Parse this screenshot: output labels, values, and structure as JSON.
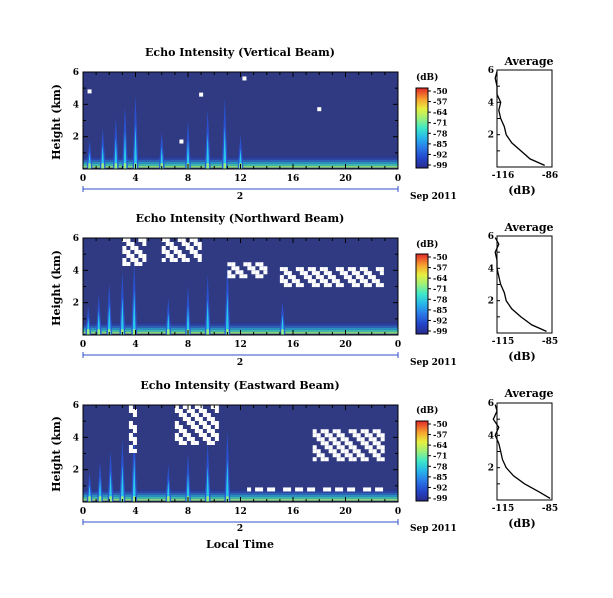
{
  "figure": {
    "xlabel": "Local Time",
    "unit_label": "(dB)",
    "date_label": "Sep 2011",
    "day_label": "2",
    "avg_title": "Average",
    "avg_xlabel": "(dB)",
    "colorbar_ticks": [
      "-50",
      "-57",
      "-64",
      "-71",
      "-78",
      "-85",
      "-92",
      "-99"
    ]
  },
  "colors": {
    "background_fill": "#2f3a82",
    "colormap": [
      "#1a1a6e",
      "#2233a8",
      "#2a55d8",
      "#2a8ee8",
      "#27c8e8",
      "#3ee8c0",
      "#9cf07a",
      "#e8f040",
      "#f8c030",
      "#f07828",
      "#e02828"
    ]
  },
  "chart_data": [
    {
      "type": "heatmap",
      "title": "Echo Intensity (Vertical Beam)",
      "ylabel": "Height (km)",
      "x_ticks": [
        "0",
        "4",
        "8",
        "12",
        "16",
        "20",
        "0"
      ],
      "y_ticks": [
        "2",
        "4",
        "6"
      ],
      "xlim": [
        0,
        24
      ],
      "ylim": [
        0,
        6
      ],
      "zlim": [
        -99,
        -50
      ],
      "spikes_hours": [
        0.5,
        1.5,
        2.5,
        3.2,
        4.0,
        6.0,
        8.0,
        9.5,
        10.8,
        12.0
      ],
      "missing_cells": [
        [
          0.5,
          4.8
        ],
        [
          7.5,
          1.7
        ],
        [
          9.0,
          4.6
        ],
        [
          18.0,
          3.7
        ],
        [
          12.3,
          5.6
        ]
      ],
      "avg_profile": {
        "xlim": [
          -116,
          -86
        ],
        "x_ticks": [
          "-116",
          "-86"
        ],
        "y_ticks": [
          "2",
          "4",
          "6"
        ],
        "height": [
          0.1,
          0.5,
          1.0,
          1.5,
          2.0,
          2.5,
          3.0,
          3.5,
          4.0,
          4.5,
          5.0,
          5.5,
          5.9
        ],
        "value": [
          -90,
          -98,
          -103,
          -108,
          -111,
          -112,
          -114,
          -115,
          -114,
          -116,
          -116,
          -117,
          -116
        ]
      }
    },
    {
      "type": "heatmap",
      "title": "Echo Intensity (Northward Beam)",
      "ylabel": "Height (km)",
      "x_ticks": [
        "0",
        "4",
        "8",
        "12",
        "16",
        "20",
        "0"
      ],
      "y_ticks": [
        "2",
        "4",
        "6"
      ],
      "xlim": [
        0,
        24
      ],
      "ylim": [
        0,
        6
      ],
      "zlim": [
        -99,
        -50
      ],
      "spikes_hours": [
        0.4,
        1.2,
        2.0,
        3.0,
        3.9,
        6.5,
        8.0,
        9.5,
        11.0,
        15.2
      ],
      "missing_regions": [
        [
          3.0,
          4.8,
          4.2,
          6.0
        ],
        [
          6.0,
          9.0,
          4.5,
          6.0
        ],
        [
          11.0,
          14.0,
          3.5,
          4.5
        ],
        [
          15.0,
          23.0,
          3.0,
          4.2
        ]
      ],
      "avg_profile": {
        "xlim": [
          -115,
          -85
        ],
        "x_ticks": [
          "-115",
          "-85"
        ],
        "y_ticks": [
          "2",
          "4",
          "6"
        ],
        "height": [
          0.1,
          0.5,
          1.0,
          1.5,
          2.0,
          2.5,
          3.0,
          3.5,
          4.0,
          4.5,
          5.0,
          5.5,
          5.9
        ],
        "value": [
          -88,
          -96,
          -102,
          -107,
          -110,
          -111,
          -113,
          -114,
          -115,
          -115,
          -116,
          -114,
          -116
        ]
      }
    },
    {
      "type": "heatmap",
      "title": "Echo Intensity (Eastward Beam)",
      "ylabel": "Height (km)",
      "x_ticks": [
        "0",
        "4",
        "8",
        "12",
        "16",
        "20",
        "0"
      ],
      "y_ticks": [
        "2",
        "4",
        "6"
      ],
      "xlim": [
        0,
        24
      ],
      "ylim": [
        0,
        6
      ],
      "zlim": [
        -99,
        -50
      ],
      "spikes_hours": [
        0.5,
        1.3,
        2.1,
        3.0,
        3.9,
        6.5,
        8.0,
        9.5,
        11.0
      ],
      "missing_regions": [
        [
          3.5,
          4.2,
          3.0,
          6.0
        ],
        [
          7.0,
          10.5,
          3.5,
          6.0
        ],
        [
          17.5,
          23.0,
          2.6,
          4.5
        ],
        [
          12.5,
          23.0,
          0.7,
          0.9
        ]
      ],
      "avg_profile": {
        "xlim": [
          -115,
          -85
        ],
        "x_ticks": [
          "-115",
          "-85"
        ],
        "y_ticks": [
          "2",
          "4",
          "6"
        ],
        "height": [
          0.1,
          0.5,
          1.0,
          1.5,
          2.0,
          2.5,
          3.0,
          3.5,
          4.0,
          4.5,
          5.0,
          5.5,
          5.9
        ],
        "value": [
          -86,
          -92,
          -100,
          -106,
          -110,
          -112,
          -113,
          -114,
          -116,
          -114,
          -117,
          -115,
          -116
        ]
      }
    }
  ]
}
